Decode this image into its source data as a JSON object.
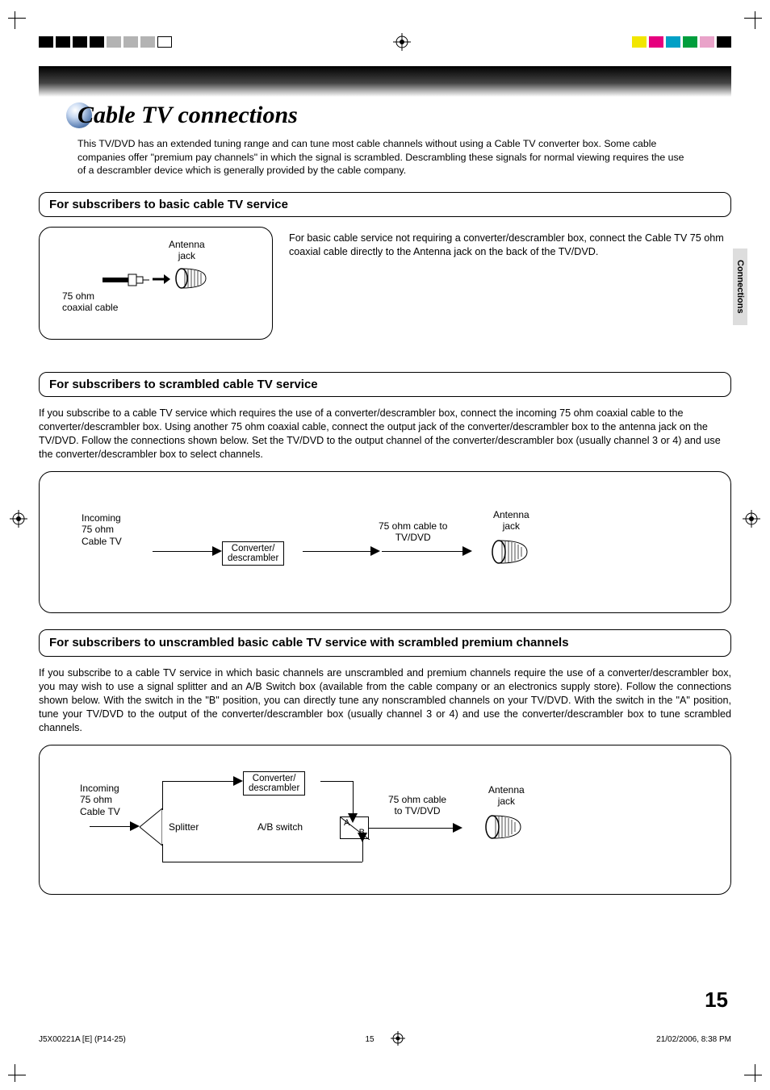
{
  "meta": {
    "section_tab": "Connections",
    "page_number": "15",
    "footer_left": "J5X00221A [E] (P14-25)",
    "footer_center": "15",
    "footer_right": "21/02/2006, 8:38 PM"
  },
  "colors": {
    "sphere_gradient": [
      "#ffffff",
      "#c9daf2",
      "#5b7fb3",
      "#2a4b7b"
    ],
    "side_tab_bg": "#dddddd",
    "cmyk_bar": [
      "#f2e600",
      "#e6007e",
      "#00a0c6",
      "#009e3d",
      "#e9a3c9",
      "#000000"
    ]
  },
  "title": "Cable TV connections",
  "intro": "This TV/DVD has an extended tuning range and can tune most cable channels without using a Cable TV converter box. Some cable companies offer \"premium pay channels\" in which the signal is scrambled. Descrambling these signals for normal viewing requires the use of a descrambler device which is generally provided by the cable company.",
  "sections": {
    "basic": {
      "heading": "For subscribers to basic cable TV service",
      "side_text": "For basic cable service not requiring a converter/descrambler box, connect the Cable TV 75 ohm coaxial cable directly to the Antenna jack on the back of the TV/DVD.",
      "diagram": {
        "antenna_label": "Antenna\njack",
        "cable_label": "75 ohm\ncoaxial cable"
      }
    },
    "scrambled": {
      "heading": "For subscribers to scrambled cable TV service",
      "body": "If you subscribe to a cable TV service which requires the use of a converter/descrambler box, connect the incoming 75 ohm coaxial cable to the converter/descrambler box. Using another 75 ohm coaxial cable, connect the output jack of the converter/descrambler box to the antenna jack on the TV/DVD. Follow the connections shown below. Set the TV/DVD to the output channel of the converter/descrambler box (usually channel 3 or 4) and use the converter/descrambler box to select channels.",
      "diagram": {
        "incoming_label": "Incoming\n75 ohm\nCable TV",
        "converter_label": "Converter/\ndescrambler",
        "mid_cable_label": "75 ohm cable to\nTV/DVD",
        "antenna_label": "Antenna\njack"
      }
    },
    "mixed": {
      "heading": "For subscribers to unscrambled basic cable TV service with scrambled premium channels",
      "body": "If you subscribe to a cable TV service in which basic channels are unscrambled and premium channels require the use of a converter/descrambler box, you may wish to use a signal splitter and an A/B Switch box (available from the cable company or an electronics supply store). Follow the connections shown below. With the switch in the \"B\" position, you can directly tune any nonscrambled channels on your TV/DVD. With the switch in the \"A\" position, tune your TV/DVD to the output of the converter/descrambler box (usually channel 3 or 4) and use the converter/descrambler box to tune scrambled channels.",
      "diagram": {
        "incoming_label": "Incoming\n75 ohm\nCable TV",
        "splitter_label": "Splitter",
        "converter_label": "Converter/\ndescrambler",
        "ab_switch_label": "A/B switch",
        "ab_a": "A",
        "ab_b": "B",
        "mid_cable_label": "75 ohm cable\nto TV/DVD",
        "antenna_label": "Antenna\njack"
      }
    }
  }
}
